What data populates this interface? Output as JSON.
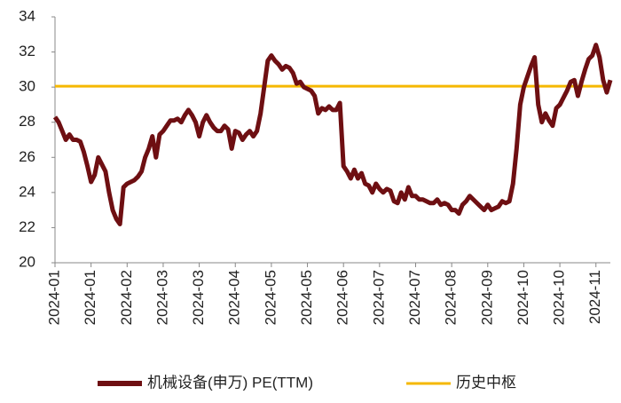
{
  "chart_data": {
    "type": "line",
    "categories": [
      "2024-01",
      null,
      null,
      null,
      null,
      null,
      null,
      null,
      null,
      null,
      "2024-01",
      null,
      null,
      null,
      null,
      null,
      null,
      null,
      null,
      null,
      "2024-02",
      null,
      null,
      null,
      null,
      null,
      null,
      null,
      null,
      null,
      "2024-03",
      null,
      null,
      null,
      null,
      null,
      null,
      null,
      null,
      null,
      "2024-03",
      null,
      null,
      null,
      null,
      null,
      null,
      null,
      null,
      null,
      "2024-04",
      null,
      null,
      null,
      null,
      null,
      null,
      null,
      null,
      null,
      "2024-05",
      null,
      null,
      null,
      null,
      null,
      null,
      null,
      null,
      null,
      "2024-05",
      null,
      null,
      null,
      null,
      null,
      null,
      null,
      null,
      null,
      "2024-06",
      null,
      null,
      null,
      null,
      null,
      null,
      null,
      null,
      null,
      "2024-07",
      null,
      null,
      null,
      null,
      null,
      null,
      null,
      null,
      null,
      "2024-07",
      null,
      null,
      null,
      null,
      null,
      null,
      null,
      null,
      null,
      "2024-08",
      null,
      null,
      null,
      null,
      null,
      null,
      null,
      null,
      null,
      "2024-09",
      null,
      null,
      null,
      null,
      null,
      null,
      null,
      null,
      null,
      "2024-10",
      null,
      null,
      null,
      null,
      null,
      null,
      null,
      null,
      null,
      "2024-10",
      null,
      null,
      null,
      null,
      null,
      null,
      null,
      null,
      null,
      "2024-11",
      null,
      null,
      null,
      null
    ],
    "series": [
      {
        "name": "机械设备(申万) PE(TTM)",
        "color": "#6e0f12",
        "values": [
          28.3,
          28.0,
          27.5,
          27.0,
          27.3,
          27.0,
          27.0,
          26.9,
          26.3,
          25.5,
          24.6,
          25.0,
          26.0,
          25.6,
          25.2,
          24.0,
          23.0,
          22.5,
          22.2,
          24.3,
          24.5,
          24.6,
          24.7,
          24.9,
          25.2,
          26.0,
          26.5,
          27.2,
          26.0,
          27.3,
          27.5,
          27.8,
          28.1,
          28.1,
          28.2,
          28.0,
          28.4,
          28.7,
          28.4,
          28.0,
          27.2,
          28.0,
          28.4,
          28.0,
          27.7,
          27.5,
          27.5,
          27.8,
          27.6,
          26.5,
          27.5,
          27.4,
          27.0,
          27.3,
          27.5,
          27.2,
          27.5,
          28.5,
          30.0,
          31.5,
          31.8,
          31.5,
          31.3,
          31.0,
          31.2,
          31.1,
          30.8,
          30.2,
          30.3,
          30.0,
          29.9,
          29.8,
          29.5,
          28.5,
          28.8,
          28.7,
          28.9,
          28.7,
          28.7,
          29.1,
          25.5,
          25.2,
          24.8,
          25.3,
          24.8,
          25.1,
          24.5,
          24.4,
          24.0,
          24.5,
          24.2,
          24.0,
          24.2,
          24.1,
          23.5,
          23.4,
          24.0,
          23.6,
          24.3,
          23.8,
          23.8,
          23.6,
          23.6,
          23.5,
          23.4,
          23.4,
          23.6,
          23.3,
          23.4,
          23.3,
          23.0,
          23.0,
          22.8,
          23.3,
          23.5,
          23.8,
          23.6,
          23.4,
          23.2,
          23.0,
          23.3,
          23.0,
          23.1,
          23.2,
          23.5,
          23.4,
          23.5,
          24.5,
          26.5,
          29.0,
          30.0,
          30.6,
          31.2,
          31.7,
          29.0,
          28.0,
          28.5,
          28.1,
          27.8,
          28.8,
          29.0,
          29.4,
          29.8,
          30.3,
          30.4,
          29.5,
          30.3,
          31.0,
          31.6,
          31.8,
          32.4,
          31.7,
          30.4,
          29.7,
          30.4
        ]
      },
      {
        "name": "历史中枢",
        "color": "#f5b800",
        "values": [
          30.05,
          30.05,
          30.05,
          30.05,
          30.05,
          30.05,
          30.05,
          30.05,
          30.05,
          30.05,
          30.05,
          30.05,
          30.05,
          30.05,
          30.05,
          30.05,
          30.05,
          30.05,
          30.05,
          30.05,
          30.05,
          30.05,
          30.05,
          30.05,
          30.05,
          30.05,
          30.05,
          30.05,
          30.05,
          30.05,
          30.05,
          30.05,
          30.05,
          30.05,
          30.05,
          30.05,
          30.05,
          30.05,
          30.05,
          30.05,
          30.05,
          30.05,
          30.05,
          30.05,
          30.05,
          30.05,
          30.05,
          30.05,
          30.05,
          30.05,
          30.05,
          30.05,
          30.05,
          30.05,
          30.05,
          30.05,
          30.05,
          30.05,
          30.05,
          30.05,
          30.05,
          30.05,
          30.05,
          30.05,
          30.05,
          30.05,
          30.05,
          30.05,
          30.05,
          30.05,
          30.05,
          30.05,
          30.05,
          30.05,
          30.05,
          30.05,
          30.05,
          30.05,
          30.05,
          30.05,
          30.05,
          30.05,
          30.05,
          30.05,
          30.05,
          30.05,
          30.05,
          30.05,
          30.05,
          30.05,
          30.05,
          30.05,
          30.05,
          30.05,
          30.05,
          30.05,
          30.05,
          30.05,
          30.05,
          30.05,
          30.05,
          30.05,
          30.05,
          30.05,
          30.05,
          30.05,
          30.05,
          30.05,
          30.05,
          30.05,
          30.05,
          30.05,
          30.05,
          30.05,
          30.05,
          30.05,
          30.05,
          30.05,
          30.05,
          30.05,
          30.05,
          30.05,
          30.05,
          30.05,
          30.05,
          30.05,
          30.05,
          30.05,
          30.05,
          30.05,
          30.05,
          30.05,
          30.05,
          30.05,
          30.05,
          30.05,
          30.05,
          30.05,
          30.05,
          30.05,
          30.05,
          30.05,
          30.05,
          30.05,
          30.05,
          30.05,
          30.05,
          30.05,
          30.05,
          30.05,
          30.05,
          30.05,
          30.05,
          30.05,
          30.05
        ]
      }
    ],
    "ylim": [
      20,
      34
    ],
    "yticks": [
      20,
      22,
      24,
      26,
      28,
      30,
      32,
      34
    ],
    "grid": false,
    "legend": "bottom"
  }
}
